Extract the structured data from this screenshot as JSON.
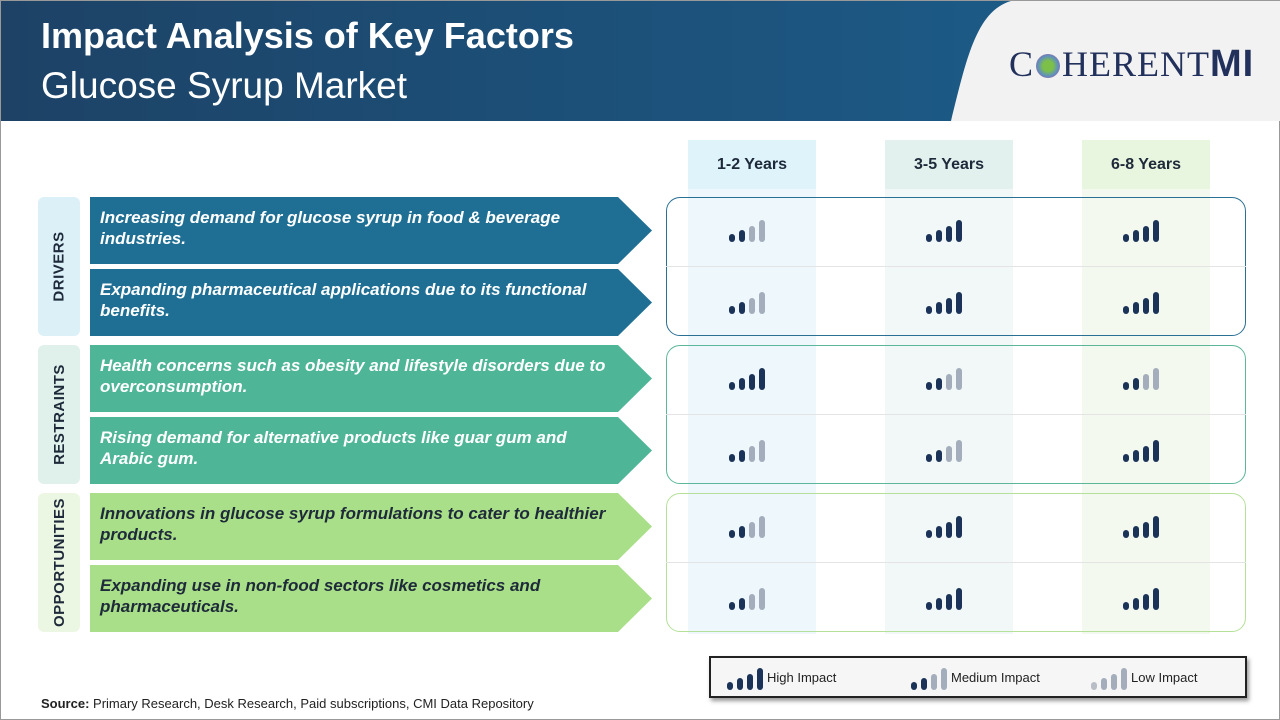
{
  "header": {
    "title": "Impact Analysis of Key Factors",
    "subtitle": "Glucose Syrup Market",
    "logo": "COHERENT MI"
  },
  "columns": [
    "1-2 Years",
    "3-5 Years",
    "6-8 Years"
  ],
  "colors": {
    "header": "#1c4f78",
    "drivers": "#1f6f94",
    "restraints": "#4fb597",
    "opportunities": "#a9df88",
    "high": "#1b3358",
    "low": "#a3adbb"
  },
  "groups": [
    {
      "label": "DRIVERS",
      "rows": [
        {
          "text": "Increasing demand for glucose syrup in food & beverage industries.",
          "impact": [
            "medium",
            "high",
            "high"
          ]
        },
        {
          "text": "Expanding pharmaceutical applications due to its functional benefits.",
          "impact": [
            "medium",
            "high",
            "high"
          ]
        }
      ]
    },
    {
      "label": "RESTRAINTS",
      "rows": [
        {
          "text": "Health concerns such as obesity and lifestyle disorders due to overconsumption.",
          "impact": [
            "high",
            "medium",
            "medium"
          ]
        },
        {
          "text": "Rising demand for alternative products like guar gum and Arabic gum.",
          "impact": [
            "medium",
            "medium",
            "high"
          ]
        }
      ]
    },
    {
      "label": "OPPORTUNITIES",
      "rows": [
        {
          "text": "Innovations in glucose syrup formulations to cater to healthier products.",
          "impact": [
            "medium",
            "high",
            "high"
          ]
        },
        {
          "text": "Expanding use in non-food sectors like cosmetics and pharmaceuticals.",
          "impact": [
            "medium",
            "high",
            "high"
          ]
        }
      ]
    }
  ],
  "legend": {
    "high": "High Impact",
    "medium": "Medium Impact",
    "low": "Low Impact"
  },
  "source": {
    "label": "Source:",
    "text": " Primary Research, Desk Research, Paid subscriptions, CMI Data Repository"
  }
}
